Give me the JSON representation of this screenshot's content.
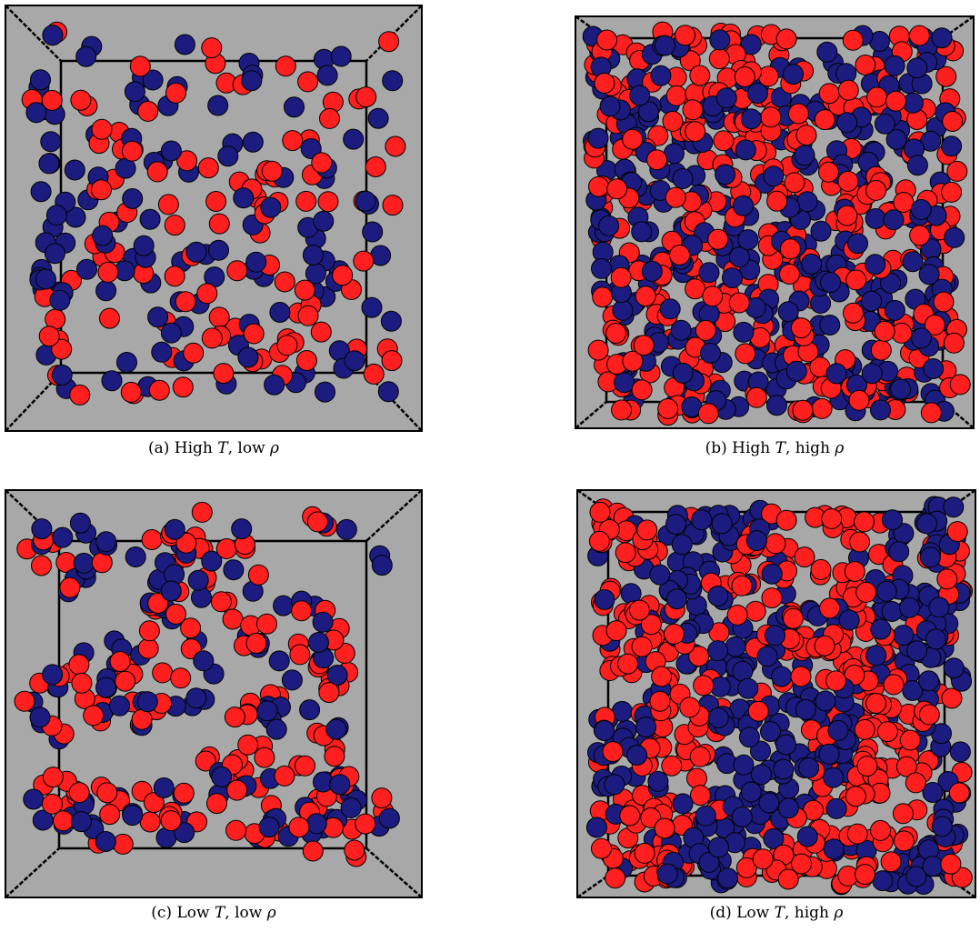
{
  "colors": {
    "background": "#a8a8a8",
    "red": "#ff1f1f",
    "blue": "#1c1c80",
    "outline": "#000000"
  },
  "panels": [
    {
      "id": "a",
      "label": "(a)",
      "temperature": "High",
      "density": "low",
      "T": "T",
      "rho": "ρ",
      "particle_count": 240,
      "arrangement": "dilute-mixed"
    },
    {
      "id": "b",
      "label": "(b)",
      "temperature": "High",
      "density": "high",
      "T": "T",
      "rho": "ρ",
      "particle_count": 720,
      "arrangement": "dense-mixed"
    },
    {
      "id": "c",
      "label": "(c)",
      "temperature": "Low",
      "density": "low",
      "T": "T",
      "rho": "ρ",
      "particle_count": 290,
      "arrangement": "clustered"
    },
    {
      "id": "d",
      "label": "(d)",
      "temperature": "Low",
      "density": "high",
      "T": "T",
      "rho": "ρ",
      "particle_count": 760,
      "arrangement": "dense-striped"
    }
  ]
}
